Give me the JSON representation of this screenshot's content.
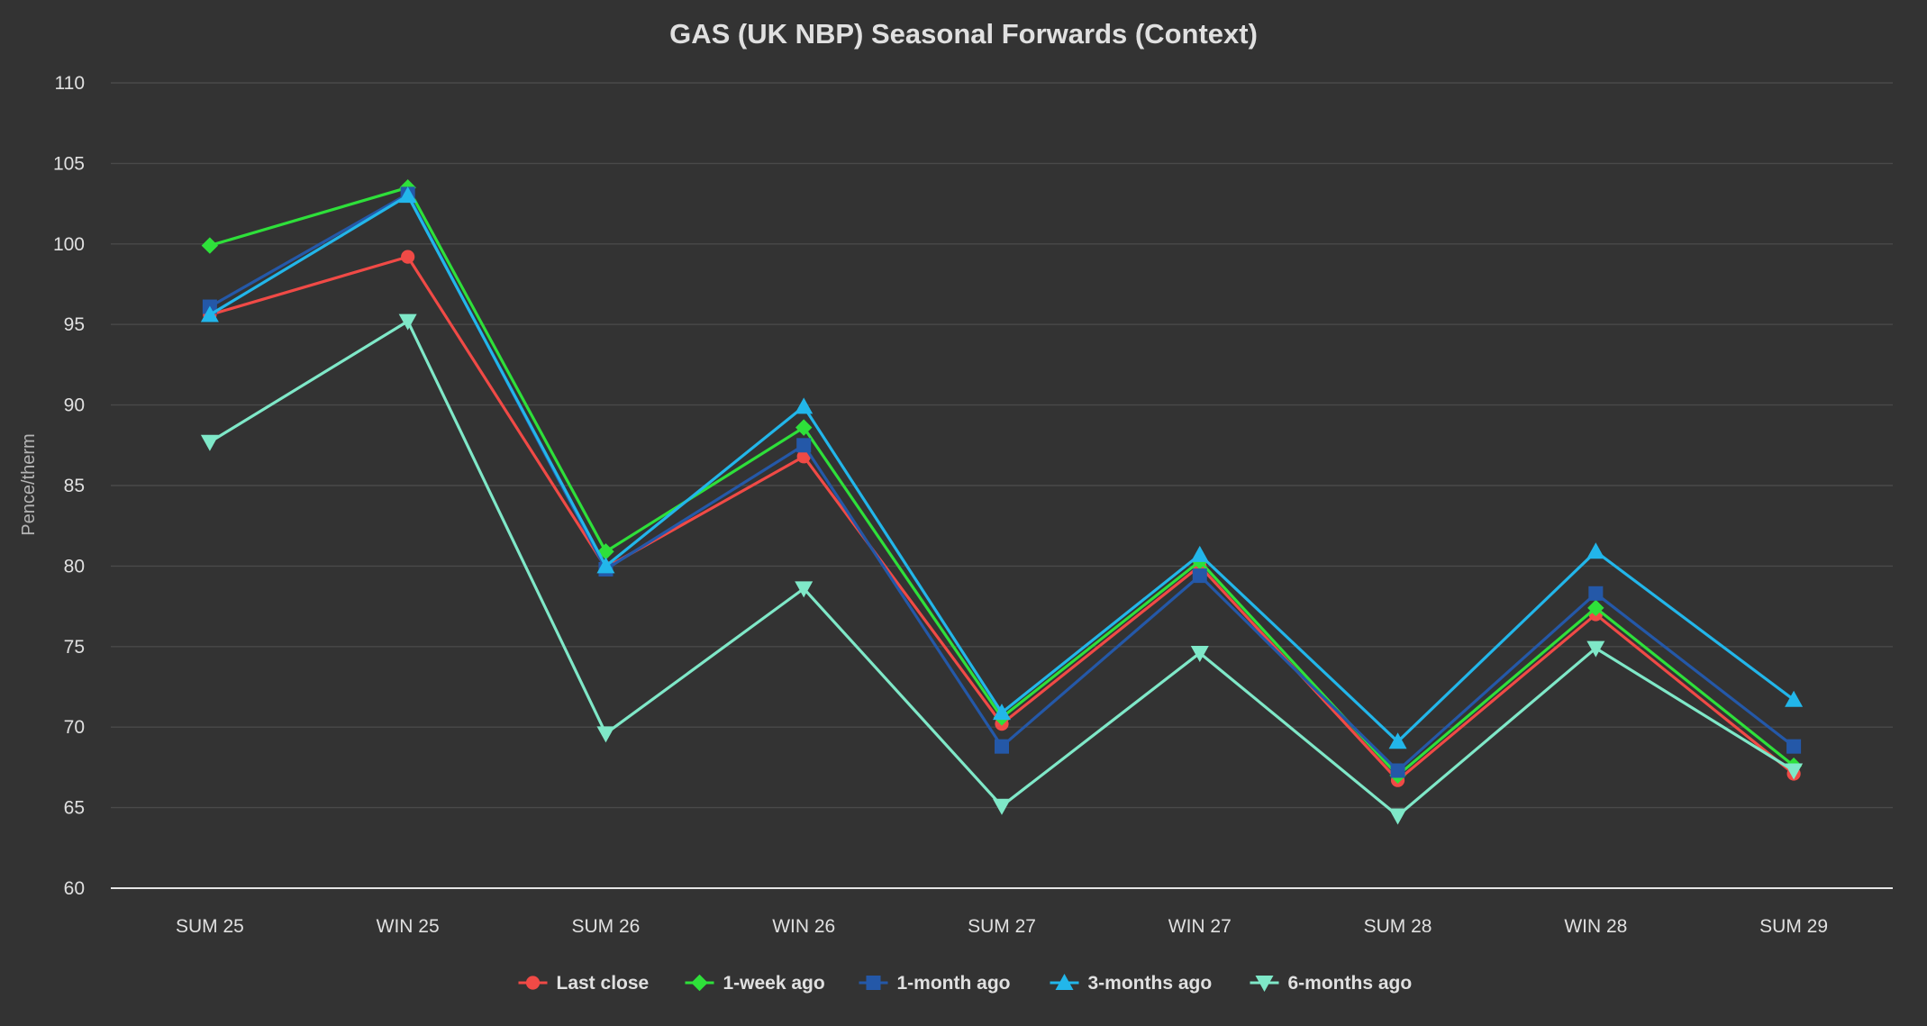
{
  "chart_data": {
    "type": "line",
    "title": "GAS (UK NBP) Seasonal Forwards (Context)",
    "xlabel": "",
    "ylabel": "Pence/therm",
    "ylim": [
      60,
      110
    ],
    "yticks": [
      60,
      65,
      70,
      75,
      80,
      85,
      90,
      95,
      100,
      105,
      110
    ],
    "grid": true,
    "legend_position": "bottom-center",
    "categories": [
      "SUM 25",
      "WIN 25",
      "SUM 26",
      "WIN 26",
      "SUM 27",
      "WIN 27",
      "SUM 28",
      "WIN 28",
      "SUM 29"
    ],
    "series": [
      {
        "name": "Last close",
        "color": "#f04a46",
        "marker": "circle",
        "values": [
          95.6,
          99.2,
          79.9,
          86.8,
          70.2,
          80.0,
          66.7,
          77.0,
          67.1
        ]
      },
      {
        "name": "1-week ago",
        "color": "#2ee03a",
        "marker": "diamond",
        "values": [
          99.9,
          103.5,
          80.9,
          88.6,
          70.6,
          80.3,
          67.0,
          77.4,
          67.6
        ]
      },
      {
        "name": "1-month ago",
        "color": "#2458a8",
        "marker": "square",
        "values": [
          96.1,
          103.1,
          79.8,
          87.5,
          68.8,
          79.4,
          67.3,
          78.3,
          68.8
        ]
      },
      {
        "name": "3-months ago",
        "color": "#22b6ea",
        "marker": "triangle",
        "values": [
          95.6,
          103.0,
          80.0,
          89.9,
          70.9,
          80.7,
          69.1,
          80.9,
          71.7
        ]
      },
      {
        "name": "6-months ago",
        "color": "#7fe8c8",
        "marker": "triangle-down",
        "values": [
          87.7,
          95.2,
          69.6,
          78.6,
          65.1,
          74.6,
          64.5,
          74.9,
          67.3
        ]
      }
    ]
  }
}
